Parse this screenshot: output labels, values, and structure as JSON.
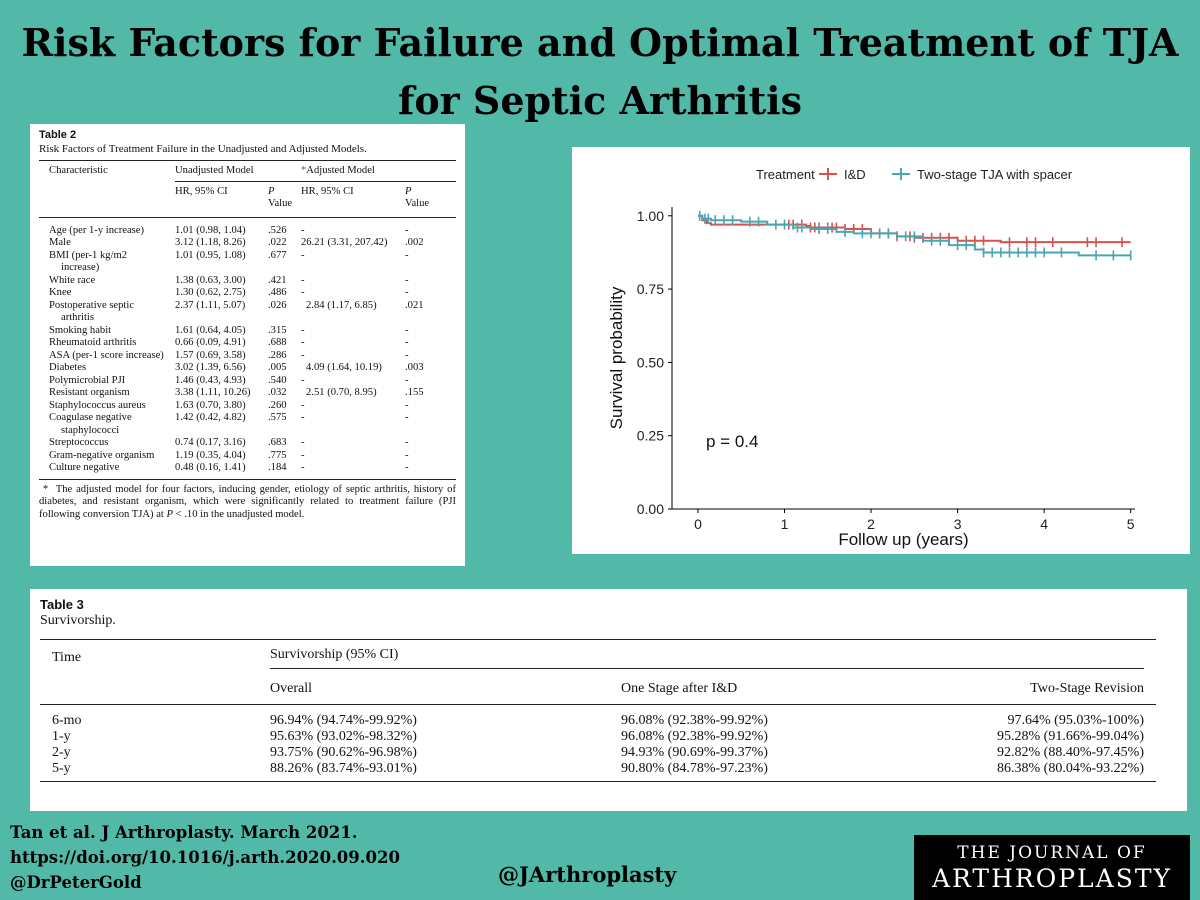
{
  "title": "Risk Factors for Failure and Optimal Treatment of TJA for Septic Arthritis",
  "table2": {
    "caption": "Table 2",
    "subtitle": "Risk Factors of Treatment Failure in the Unadjusted and Adjusted Models.",
    "col_characteristic": "Characteristic",
    "col_unadjusted": "Unadjusted Model",
    "col_adjusted_mark": "*",
    "col_adjusted": "Adjusted Model",
    "col_hr": "HR, 95% CI",
    "col_p": "P",
    "col_value": "Value",
    "rows": [
      {
        "char": "Age (per 1-y increase)",
        "char2": "",
        "u_hr": "1.01 (0.98, 1.04)",
        "u_p": ".526",
        "a_hr": "-",
        "a_p": "-"
      },
      {
        "char": "Male",
        "char2": "",
        "u_hr": "3.12 (1.18, 8.26)",
        "u_p": ".022",
        "a_hr": "26.21 (3.31, 207.42)",
        "a_p": ".002"
      },
      {
        "char": "BMI (per-1 kg/m2",
        "char2": "increase)",
        "u_hr": "1.01 (0.95, 1.08)",
        "u_p": ".677",
        "a_hr": "-",
        "a_p": "-"
      },
      {
        "char": "White race",
        "char2": "",
        "u_hr": "1.38 (0.63, 3.00)",
        "u_p": ".421",
        "a_hr": "-",
        "a_p": "-"
      },
      {
        "char": "Knee",
        "char2": "",
        "u_hr": "1.30 (0.62, 2.75)",
        "u_p": ".486",
        "a_hr": "-",
        "a_p": "-"
      },
      {
        "char": "Postoperative septic",
        "char2": "arthritis",
        "u_hr": "2.37 (1.11, 5.07)",
        "u_p": ".026",
        "a_hr": "2.84 (1.17, 6.85)",
        "a_p": ".021"
      },
      {
        "char": "Smoking habit",
        "char2": "",
        "u_hr": "1.61 (0.64, 4.05)",
        "u_p": ".315",
        "a_hr": "-",
        "a_p": "-"
      },
      {
        "char": "Rheumatoid arthritis",
        "char2": "",
        "u_hr": "0.66 (0.09, 4.91)",
        "u_p": ".688",
        "a_hr": "-",
        "a_p": "-"
      },
      {
        "char": "ASA (per-1 score increase)",
        "char2": "",
        "u_hr": "1.57 (0.69, 3.58)",
        "u_p": ".286",
        "a_hr": "-",
        "a_p": "-"
      },
      {
        "char": "Diabetes",
        "char2": "",
        "u_hr": "3.02 (1.39, 6.56)",
        "u_p": ".005",
        "a_hr": "4.09 (1.64, 10.19)",
        "a_p": ".003"
      },
      {
        "char": "Polymicrobial PJI",
        "char2": "",
        "u_hr": "1.46 (0.43, 4.93)",
        "u_p": ".540",
        "a_hr": "-",
        "a_p": "-"
      },
      {
        "char": "Resistant organism",
        "char2": "",
        "u_hr": "3.38 (1.11, 10.26)",
        "u_p": ".032",
        "a_hr": "2.51 (0.70, 8.95)",
        "a_p": ".155"
      },
      {
        "char": "Staphylococcus aureus",
        "char2": "",
        "u_hr": "1.63 (0.70, 3.80)",
        "u_p": ".260",
        "a_hr": "-",
        "a_p": "-"
      },
      {
        "char": "Coagulase negative",
        "char2": "staphylococci",
        "u_hr": "1.42 (0.42, 4.82)",
        "u_p": ".575",
        "a_hr": "-",
        "a_p": "-"
      },
      {
        "char": "Streptococcus",
        "char2": "",
        "u_hr": "0.74 (0.17, 3.16)",
        "u_p": ".683",
        "a_hr": "-",
        "a_p": "-"
      },
      {
        "char": "Gram-negative organism",
        "char2": "",
        "u_hr": "1.19 (0.35, 4.04)",
        "u_p": ".775",
        "a_hr": "-",
        "a_p": "-"
      },
      {
        "char": "Culture negative",
        "char2": "",
        "u_hr": "0.48 (0.16, 1.41)",
        "u_p": ".184",
        "a_hr": "-",
        "a_p": "-"
      }
    ],
    "note_mark": "*",
    "note_text": "The adjusted model for four factors, inducing gender, etiology of septic arthritis, history of diabetes, and resistant organism, which were significantly related to treatment failure (PJI following conversion TJA) at",
    "note_p": "P",
    "note_end": "< .10 in the unadjusted model."
  },
  "chart_data": {
    "type": "line",
    "legend_title": "Treatment",
    "legend_position": "top",
    "xlabel": "Follow up (years)",
    "ylabel": "Survival probability",
    "xlim": [
      -0.3,
      5.05
    ],
    "ylim": [
      0,
      1.03
    ],
    "xticks": [
      "0",
      "1",
      "2",
      "3",
      "4",
      "5"
    ],
    "yticks": [
      "0.00",
      "0.25",
      "0.50",
      "0.75",
      "1.00"
    ],
    "annotation": "p = 0.4",
    "series": [
      {
        "name": "I&D",
        "color": "#d9534a",
        "steps": [
          [
            0,
            1.0
          ],
          [
            0.05,
            0.985
          ],
          [
            0.1,
            0.975
          ],
          [
            0.15,
            0.97
          ],
          [
            1.25,
            0.965
          ],
          [
            1.3,
            0.96
          ],
          [
            1.7,
            0.955
          ],
          [
            2.0,
            0.94
          ],
          [
            2.3,
            0.93
          ],
          [
            2.5,
            0.925
          ],
          [
            3.0,
            0.915
          ],
          [
            3.5,
            0.91
          ],
          [
            5.0,
            0.91
          ]
        ],
        "censor": [
          1.05,
          1.1,
          1.2,
          1.3,
          1.35,
          1.4,
          1.5,
          1.55,
          1.6,
          1.7,
          1.8,
          1.9,
          2.1,
          2.2,
          2.3,
          2.45,
          2.5,
          2.6,
          2.7,
          2.8,
          2.9,
          3.1,
          3.2,
          3.3,
          3.6,
          3.8,
          3.9,
          4.1,
          4.5,
          4.6,
          4.9
        ]
      },
      {
        "name": "Two-stage TJA with spacer",
        "color": "#4aa6b5",
        "steps": [
          [
            0,
            1.0
          ],
          [
            0.05,
            0.99
          ],
          [
            0.15,
            0.985
          ],
          [
            0.5,
            0.98
          ],
          [
            0.8,
            0.97
          ],
          [
            1.1,
            0.96
          ],
          [
            1.3,
            0.955
          ],
          [
            1.6,
            0.945
          ],
          [
            1.8,
            0.94
          ],
          [
            2.3,
            0.93
          ],
          [
            2.6,
            0.915
          ],
          [
            2.9,
            0.9
          ],
          [
            3.2,
            0.885
          ],
          [
            3.3,
            0.875
          ],
          [
            4.4,
            0.865
          ],
          [
            5.0,
            0.865
          ]
        ],
        "censor": [
          0.02,
          0.08,
          0.12,
          0.2,
          0.3,
          0.4,
          0.6,
          0.7,
          0.9,
          1.0,
          1.15,
          1.2,
          1.4,
          1.5,
          1.7,
          1.9,
          2.0,
          2.1,
          2.2,
          2.4,
          2.5,
          2.7,
          2.8,
          3.0,
          3.1,
          3.3,
          3.4,
          3.5,
          3.6,
          3.7,
          3.8,
          3.9,
          4.0,
          4.2,
          4.6,
          4.8,
          5.0
        ]
      }
    ]
  },
  "table3": {
    "caption": "Table 3",
    "subtitle": "Survivorship.",
    "col_time": "Time",
    "col_group": "Survivorship (95% CI)",
    "col_overall": "Overall",
    "col_one_stage": "One Stage after I&D",
    "col_two_stage": "Two-Stage Revision",
    "rows": [
      {
        "time": "6-mo",
        "overall": "96.94% (94.74%-99.92%)",
        "one": "96.08% (92.38%-99.92%)",
        "two": "97.64% (95.03%-100%)"
      },
      {
        "time": "1-y",
        "overall": "95.63% (93.02%-98.32%)",
        "one": "96.08% (92.38%-99.92%)",
        "two": "95.28% (91.66%-99.04%)"
      },
      {
        "time": "2-y",
        "overall": "93.75% (90.62%-96.98%)",
        "one": "94.93% (90.69%-99.37%)",
        "two": "92.82% (88.40%-97.45%)"
      },
      {
        "time": "5-y",
        "overall": "88.26% (83.74%-93.01%)",
        "one": "90.80% (84.78%-97.23%)",
        "two": "86.38% (80.04%-93.22%)"
      }
    ]
  },
  "footer": {
    "citation_line1": "Tan et al. J Arthroplasty. March 2021.",
    "citation_line2": "https://doi.org/10.1016/j.arth.2020.09.020",
    "citation_line3": "@DrPeterGold",
    "handle": "@JArthroplasty",
    "journal_line1": "THE JOURNAL OF",
    "journal_line2": "ARTHROPLASTY"
  }
}
